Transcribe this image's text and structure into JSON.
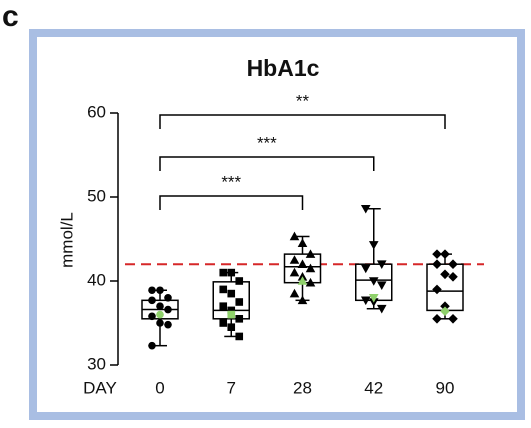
{
  "panel_label": "c",
  "chart_data": {
    "type": "box",
    "title": "HbA1c",
    "ylabel": "mmol/L",
    "xlabel": "DAY",
    "categories": [
      "0",
      "7",
      "28",
      "42",
      "90"
    ],
    "ylim": [
      30,
      60
    ],
    "yticks": [
      30,
      40,
      50,
      60
    ],
    "color": "#000000",
    "highlight_color": "#8fd16b",
    "markers": [
      "circle",
      "square",
      "triangle",
      "triangle-down",
      "diamond"
    ],
    "reference_line": {
      "value": 42,
      "color": "#d62728",
      "dashed": true
    },
    "boxes": [
      {
        "whisker_low": 32.3,
        "q1": 35.5,
        "median": 36.6,
        "q3": 37.7,
        "whisker_high": 38.9,
        "points": [
          38.9,
          38.9,
          38.0,
          37.7,
          37.0,
          36.6,
          35.8,
          35.0,
          34.8,
          32.3
        ],
        "mean": 36.0
      },
      {
        "whisker_low": 33.4,
        "q1": 35.5,
        "median": 36.5,
        "q3": 39.9,
        "whisker_high": 41.0,
        "points": [
          41.0,
          41.0,
          40.0,
          39.0,
          38.5,
          37.5,
          37.0,
          36.5,
          35.5,
          35.0,
          34.5,
          33.4
        ],
        "mean": 36.0
      },
      {
        "whisker_low": 37.7,
        "q1": 39.8,
        "median": 41.7,
        "q3": 43.2,
        "whisker_high": 45.3,
        "points": [
          45.3,
          44.5,
          43.2,
          42.5,
          42.0,
          41.5,
          41.0,
          40.5,
          39.8,
          38.5,
          37.7
        ],
        "mean": 40.0
      },
      {
        "whisker_low": 36.7,
        "q1": 37.7,
        "median": 40.1,
        "q3": 42.0,
        "whisker_high": 48.6,
        "points": [
          48.6,
          44.3,
          42.0,
          41.5,
          40.0,
          39.5,
          37.7,
          37.5,
          36.7
        ],
        "mean": 38.0
      },
      {
        "whisker_low": 35.5,
        "q1": 36.5,
        "median": 38.8,
        "q3": 42.0,
        "whisker_high": 43.2,
        "points": [
          43.2,
          43.2,
          42.0,
          42.0,
          40.8,
          40.5,
          39.0,
          37.0,
          35.5,
          35.5
        ],
        "mean": 36.4
      }
    ],
    "annotations": [
      {
        "from": 0,
        "to": 2,
        "label": "***"
      },
      {
        "from": 0,
        "to": 3,
        "label": "***"
      },
      {
        "from": 0,
        "to": 4,
        "label": "**"
      }
    ]
  }
}
